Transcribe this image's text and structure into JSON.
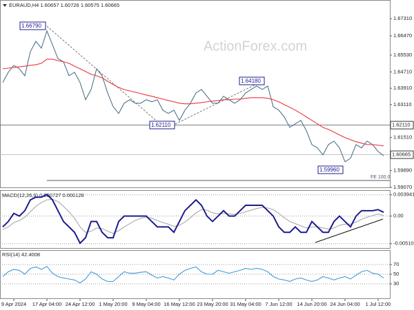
{
  "chart_data": [
    {
      "type": "line",
      "title": "EURAUD,H4  1.60657 1.60726 1.60575 1.60665",
      "watermark": "ActionForex.com",
      "annotations": [
        "1.66790",
        "1.64180",
        "1.62110",
        "1.59960",
        "FE 100.0"
      ],
      "ylim": [
        1.5907,
        1.6822
      ],
      "yticks": [
        {
          "value": 1.6731,
          "label": "1.67310"
        },
        {
          "value": 1.6647,
          "label": "1.66470"
        },
        {
          "value": 1.6553,
          "label": "1.65530"
        },
        {
          "value": 1.6471,
          "label": "1.64710"
        },
        {
          "value": 1.6391,
          "label": "1.63910"
        },
        {
          "value": 1.6311,
          "label": "1.63110"
        },
        {
          "value": 1.6151,
          "label": "1.61510"
        },
        {
          "value": 1.5989,
          "label": "1.59890"
        },
        {
          "value": 1.5907,
          "label": "1.59070"
        }
      ],
      "price_markers": [
        {
          "value": 1.6211,
          "label": "1.62110"
        },
        {
          "value": 1.60665,
          "label": "1.60665"
        }
      ],
      "grid": false,
      "series": [
        {
          "color": "#4f7389",
          "values": [
            1.6419,
            1.6469,
            1.6503,
            1.6486,
            1.6452,
            1.657,
            1.662,
            1.6587,
            1.6671,
            1.6604,
            1.6536,
            1.652,
            1.6452,
            1.6469,
            1.6419,
            1.6335,
            1.6385,
            1.6486,
            1.6452,
            1.6368,
            1.6301,
            1.6268,
            1.6318,
            1.6335,
            1.6318,
            1.6318,
            1.6335,
            1.6325,
            1.6335,
            1.6284,
            1.6268,
            1.6284,
            1.6234,
            1.6284,
            1.6318,
            1.6368,
            1.6385,
            1.6352,
            1.6318,
            1.6318,
            1.6352,
            1.6335,
            1.6318,
            1.6335,
            1.6368,
            1.6385,
            1.6402,
            1.6385,
            1.6402,
            1.6301,
            1.6284,
            1.6251,
            1.62,
            1.6217,
            1.6234,
            1.6184,
            1.6116,
            1.61,
            1.6066,
            1.6116,
            1.6133,
            1.61,
            1.6032,
            1.6049,
            1.6116,
            1.61,
            1.6133,
            1.6116,
            1.6082,
            1.6062
          ]
        },
        {
          "color": "#e8353c",
          "values": [
            1.6486,
            1.6489,
            1.6493,
            1.6496,
            1.6499,
            1.6503,
            1.6506,
            1.6513,
            1.6533,
            1.6533,
            1.6526,
            1.652,
            1.6513,
            1.6499,
            1.6486,
            1.6473,
            1.6459,
            1.6452,
            1.6442,
            1.6425,
            1.6409,
            1.6395,
            1.6385,
            1.6378,
            1.6372,
            1.6365,
            1.6358,
            1.6352,
            1.6345,
            1.6338,
            1.6331,
            1.6325,
            1.6318,
            1.6315,
            1.6315,
            1.6318,
            1.6321,
            1.6325,
            1.6328,
            1.6331,
            1.6335,
            1.6335,
            1.6338,
            1.6338,
            1.6342,
            1.6345,
            1.6345,
            1.6345,
            1.6342,
            1.6335,
            1.6325,
            1.6311,
            1.6298,
            1.6284,
            1.6268,
            1.6251,
            1.6234,
            1.6217,
            1.62,
            1.619,
            1.6177,
            1.6163,
            1.615,
            1.614,
            1.613,
            1.6123,
            1.6116,
            1.6116,
            1.6113,
            1.611
          ]
        }
      ]
    },
    {
      "type": "line",
      "title": "MACD(12,26,9) 0.000727 0.000128",
      "ylim": [
        -0.0059,
        0.0048
      ],
      "yticks": [
        0.003941,
        {
          "value": 0,
          "label": "0.00"
        },
        -0.005103
      ],
      "grid": true,
      "series": [
        {
          "color": "#a8a8a8",
          "values": [
            -0.0025,
            -0.002,
            -0.0012,
            -0.0008,
            -0.0002,
            0.0008,
            0.0018,
            0.0025,
            0.003,
            0.0031,
            0.0027,
            0.0018,
            0.0008,
            -0.0004,
            -0.002,
            -0.003,
            -0.0028,
            -0.0022,
            -0.0023,
            -0.0028,
            -0.0032,
            -0.0027,
            -0.002,
            -0.0014,
            -0.0008,
            -0.0004,
            -0.0002,
            -0.0004,
            -0.0008,
            -0.0012,
            -0.0015,
            -0.0019,
            -0.0017,
            -0.0011,
            -0.0003,
            0.0006,
            0.0012,
            0.0011,
            0.0006,
            0.0004,
            0.0005,
            0.0004,
            0.0003,
            0.0005,
            0.0008,
            0.0011,
            0.0014,
            0.0016,
            0.0015,
            0.0012,
            0.0005,
            -0.0003,
            -0.001,
            -0.0014,
            -0.0018,
            -0.0022,
            -0.002,
            -0.002,
            -0.0022,
            -0.0024,
            -0.0022,
            -0.0017,
            -0.0015,
            -0.0015,
            -0.0011,
            -0.0006,
            -0.0002,
            0.0001,
            0.0004,
            0.0001
          ]
        },
        {
          "color": "#1b1b8f",
          "values": [
            -0.002,
            -0.001,
            0.0005,
            0,
            0.001,
            0.003,
            0.0035,
            0.0035,
            0.004,
            0.003,
            0.001,
            -0.001,
            -0.002,
            -0.003,
            -0.005,
            -0.004,
            -0.001,
            -0.001,
            -0.003,
            -0.004,
            -0.004,
            -0.001,
            0,
            0,
            0,
            0,
            0,
            -0.001,
            -0.002,
            -0.002,
            -0.002,
            -0.003,
            -0.001,
            0.001,
            0.002,
            0.003,
            0.002,
            0,
            -0.001,
            0,
            0.001,
            0,
            0,
            0.001,
            0.002,
            0.002,
            0.002,
            0.002,
            0.001,
            0,
            -0.002,
            -0.003,
            -0.003,
            -0.002,
            -0.003,
            -0.003,
            -0.001,
            -0.002,
            -0.003,
            -0.003,
            -0.001,
            0,
            -0.001,
            -0.002,
            0,
            0.001,
            0.001,
            0.001,
            0.0012,
            0.0007
          ]
        }
      ]
    },
    {
      "type": "line",
      "title": "RSI(14) 42.4008",
      "ylim": [
        0,
        100
      ],
      "yticks": [
        70,
        50,
        30
      ],
      "grid": true,
      "categories": [
        null,
        null,
        "9 Apr 2024",
        null,
        null,
        null,
        null,
        null,
        "17 Apr 04:00",
        null,
        null,
        null,
        null,
        null,
        "24 Apr 12:00",
        null,
        null,
        null,
        null,
        null,
        "1 May 20:00",
        null,
        null,
        null,
        null,
        null,
        "9 May 04:00",
        null,
        null,
        null,
        null,
        null,
        "16 May 12:00",
        null,
        null,
        null,
        null,
        null,
        "23 May 20:00",
        null,
        null,
        null,
        null,
        null,
        "31 May 04:00",
        null,
        null,
        null,
        null,
        null,
        "7 Jun 12:00",
        null,
        null,
        null,
        null,
        null,
        "14 Jun 20:00",
        null,
        null,
        null,
        null,
        null,
        "24 Jun 04:00",
        null,
        null,
        null,
        null,
        null,
        "1 Jul 12:00",
        null
      ],
      "series": [
        {
          "color": "#3d9ad6",
          "values": [
            45,
            55,
            60,
            58,
            50,
            62,
            65,
            60,
            66,
            52,
            45,
            42,
            40,
            38,
            32,
            40,
            55,
            50,
            40,
            35,
            35,
            45,
            55,
            52,
            52,
            54,
            55,
            48,
            42,
            45,
            42,
            38,
            50,
            58,
            62,
            65,
            55,
            50,
            50,
            58,
            55,
            52,
            55,
            58,
            62,
            60,
            62,
            60,
            55,
            45,
            40,
            38,
            35,
            40,
            42,
            38,
            35,
            38,
            45,
            42,
            38,
            42,
            45,
            40,
            48,
            55,
            58,
            52,
            50,
            42
          ]
        }
      ]
    }
  ]
}
